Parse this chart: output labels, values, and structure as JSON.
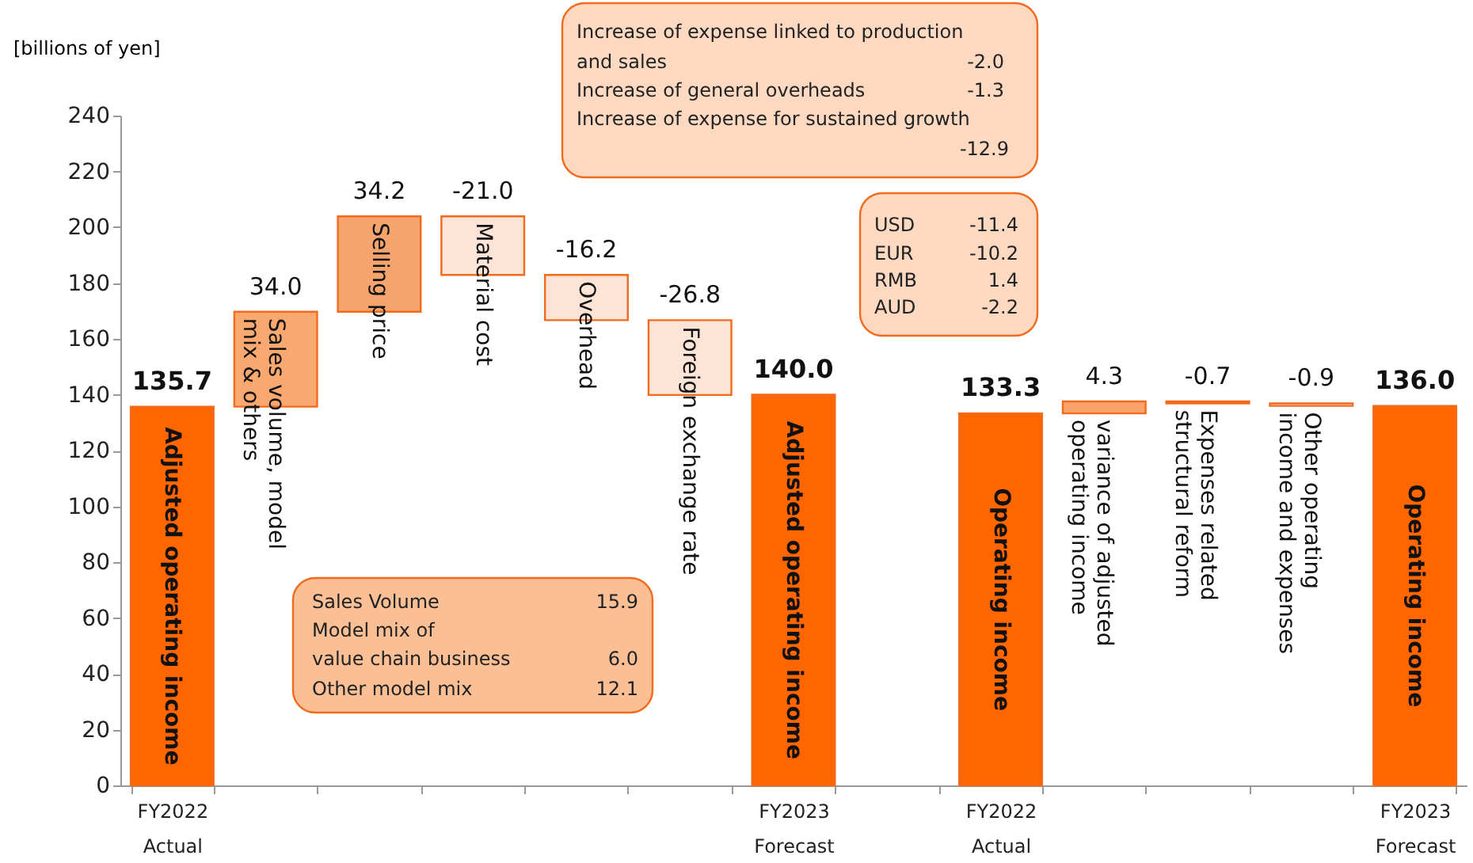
{
  "chart_data": {
    "type": "bar",
    "ylabel": "[billions of yen]",
    "categories": [
      "FY2022\nActual",
      null,
      null,
      null,
      null,
      null,
      "FY2023\nForecast",
      null,
      "FY2022\nActual",
      null,
      null,
      null,
      "FY2023\nForecast"
    ],
    "values": [
      135.7,
      34.0,
      34.2,
      -21.0,
      -16.2,
      -26.8,
      140.0,
      null,
      133.3,
      4.3,
      -0.7,
      -0.9,
      136.0
    ],
    "base": [
      0,
      135.7,
      169.7,
      203.9,
      182.9,
      166.7,
      0,
      null,
      0,
      133.3,
      137.6,
      136.9,
      0
    ],
    "colors": [
      "#ff6600",
      "#f9a870",
      "#f6a46d",
      "#fde4d6",
      "#fde4d6",
      "#fde4d6",
      "#ff6600",
      null,
      "#ff6600",
      "#fba36b",
      "#fde4d6",
      "#fde4d6",
      "#ff6600"
    ],
    "ylim": [
      0,
      240
    ],
    "yticks": [
      0,
      20,
      40,
      60,
      80,
      100,
      120,
      140,
      160,
      180,
      200,
      220,
      240
    ],
    "grid": false,
    "legend": false,
    "value_labels": [
      "135.7",
      "34.0",
      "34.2",
      "-21.0",
      "-16.2",
      "-26.8",
      "140.0",
      null,
      "133.3",
      "4.3",
      "-0.7",
      "-0.9",
      "136.0"
    ],
    "annotations": [
      "Adjusted operating income",
      "Sales volume, model\nmix & others",
      "Selling price",
      "Material cost",
      "Overhead",
      "Foreign exchange rate",
      "Adjusted operating income",
      "Operating income",
      "variance of adjusted\noperating income",
      "Expenses related\nstructural reform",
      "Other operating\nincome and expenses",
      "Operating income",
      "Increase of expense linked to production",
      "and sales",
      "-2.0",
      "Increase of general overheads",
      "-1.3",
      "Increase of expense for sustained growth",
      "-12.9",
      "USD",
      "-11.4",
      "EUR",
      "-10.2",
      "RMB",
      "1.4",
      "AUD",
      "-2.2",
      "Sales Volume",
      "15.9",
      "Model mix of",
      "value chain business",
      "6.0",
      "Other model mix",
      "12.1"
    ]
  }
}
